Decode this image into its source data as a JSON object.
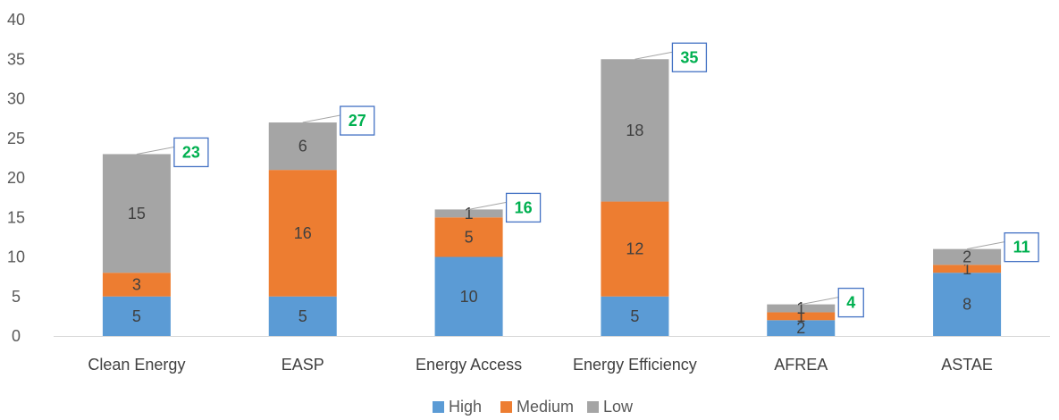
{
  "chart_data": {
    "type": "bar",
    "stacked": true,
    "categories": [
      "Clean Energy",
      "EASP",
      "Energy Access",
      "Energy Efficiency",
      "AFREA",
      "ASTAE"
    ],
    "series": [
      {
        "name": "High",
        "values": [
          5,
          5,
          10,
          5,
          2,
          8
        ],
        "color": "#5B9BD5"
      },
      {
        "name": "Medium",
        "values": [
          3,
          16,
          5,
          12,
          1,
          1
        ],
        "color": "#ED7D31"
      },
      {
        "name": "Low",
        "values": [
          15,
          6,
          1,
          18,
          1,
          2
        ],
        "color": "#A5A5A5"
      }
    ],
    "totals": [
      23,
      27,
      16,
      35,
      4,
      11
    ],
    "ylim": [
      0,
      40
    ],
    "yticks": [
      0,
      5,
      10,
      15,
      20,
      25,
      30,
      35,
      40
    ],
    "grid": false,
    "legend_position": "bottom",
    "total_label_color": "#00B050",
    "total_box_color": "#4472C4",
    "title": "",
    "xlabel": "",
    "ylabel": ""
  }
}
